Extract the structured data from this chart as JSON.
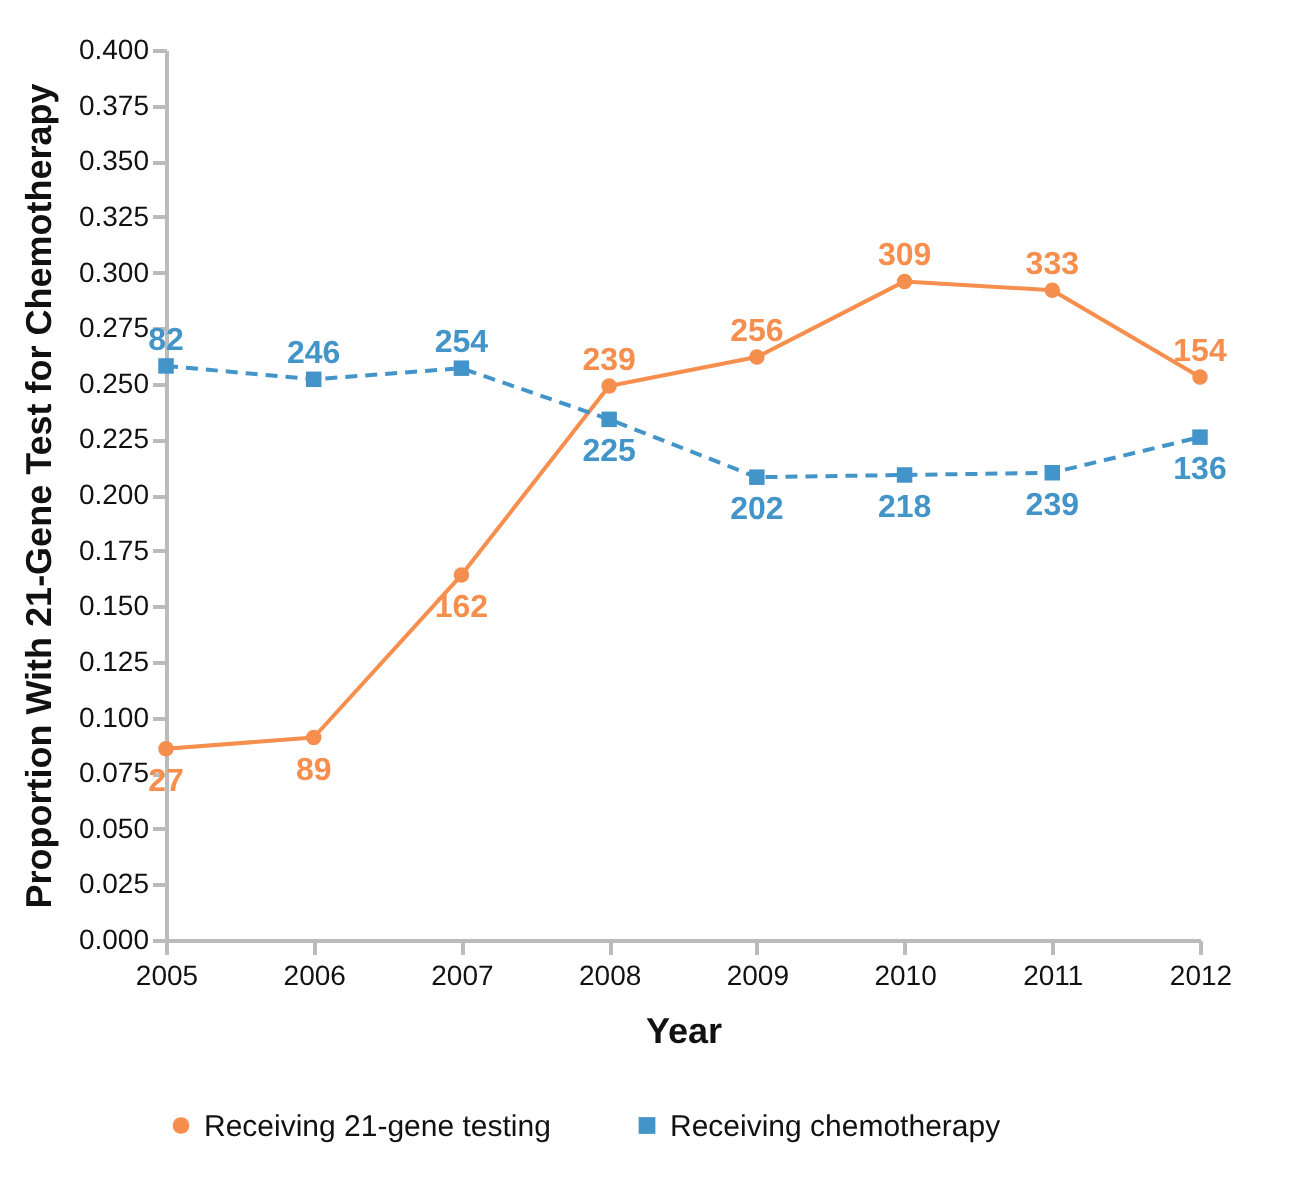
{
  "chart_data": {
    "type": "line",
    "xlabel": "Year",
    "ylabel": "Proportion With 21-Gene Test for Chemotherapy",
    "x": [
      2005,
      2006,
      2007,
      2008,
      2009,
      2010,
      2011,
      2012
    ],
    "xlim": [
      2005,
      2012
    ],
    "xticks": [
      2005,
      2006,
      2007,
      2008,
      2009,
      2010,
      2011,
      2012
    ],
    "ylim": [
      0,
      0.4
    ],
    "yticks": [
      {
        "value": 0,
        "label": "0.000"
      },
      {
        "value": 0.025,
        "label": "0.025"
      },
      {
        "value": 0.05,
        "label": "0.050"
      },
      {
        "value": 0.075,
        "label": "0.075"
      },
      {
        "value": 0.1,
        "label": "0.100"
      },
      {
        "value": 0.125,
        "label": "0.125"
      },
      {
        "value": 0.15,
        "label": "0.150"
      },
      {
        "value": 0.175,
        "label": "0.175"
      },
      {
        "value": 0.2,
        "label": "0.200"
      },
      {
        "value": 0.225,
        "label": "0.225"
      },
      {
        "value": 0.25,
        "label": "0.250"
      },
      {
        "value": 0.275,
        "label": "0.275"
      },
      {
        "value": 0.3,
        "label": "0.300"
      },
      {
        "value": 0.325,
        "label": "0.325"
      },
      {
        "value": 0.35,
        "label": "0.350"
      },
      {
        "value": 0.375,
        "label": "0.375"
      },
      {
        "value": 0.4,
        "label": "0.400"
      }
    ],
    "grid": false,
    "legend": "bottom",
    "series": [
      {
        "name": "Receiving 21-gene testing",
        "color": "#f68e4e",
        "marker": "circle",
        "line_style": "solid",
        "values": [
          0.086,
          0.091,
          0.164,
          0.249,
          0.262,
          0.296,
          0.292,
          0.253
        ]
      },
      {
        "name": "Receiving chemotherapy",
        "color": "#4394c8",
        "marker": "square",
        "line_style": "dashed",
        "values": [
          0.258,
          0.252,
          0.257,
          0.234,
          0.208,
          0.209,
          0.21,
          0.226
        ]
      }
    ],
    "annotations": [
      {
        "text": "27",
        "x": 2005,
        "y": 0.086
      },
      {
        "text": "89",
        "x": 2006,
        "y": 0.091
      },
      {
        "text": "162",
        "x": 2007,
        "y": 0.164
      },
      {
        "text": "239",
        "x": 2008,
        "y": 0.249
      },
      {
        "text": "256",
        "x": 2009,
        "y": 0.262
      },
      {
        "text": "309",
        "x": 2010,
        "y": 0.296
      },
      {
        "text": "333",
        "x": 2011,
        "y": 0.292
      },
      {
        "text": "154",
        "x": 2012,
        "y": 0.253
      },
      {
        "text": "82",
        "x": 2005,
        "y": 0.258
      },
      {
        "text": "246",
        "x": 2006,
        "y": 0.252
      },
      {
        "text": "254",
        "x": 2007,
        "y": 0.257
      },
      {
        "text": "225",
        "x": 2008,
        "y": 0.234
      },
      {
        "text": "202",
        "x": 2009,
        "y": 0.208
      },
      {
        "text": "218",
        "x": 2010,
        "y": 0.209
      },
      {
        "text": "239",
        "x": 2011,
        "y": 0.21
      },
      {
        "text": "136",
        "x": 2012,
        "y": 0.226
      }
    ]
  }
}
